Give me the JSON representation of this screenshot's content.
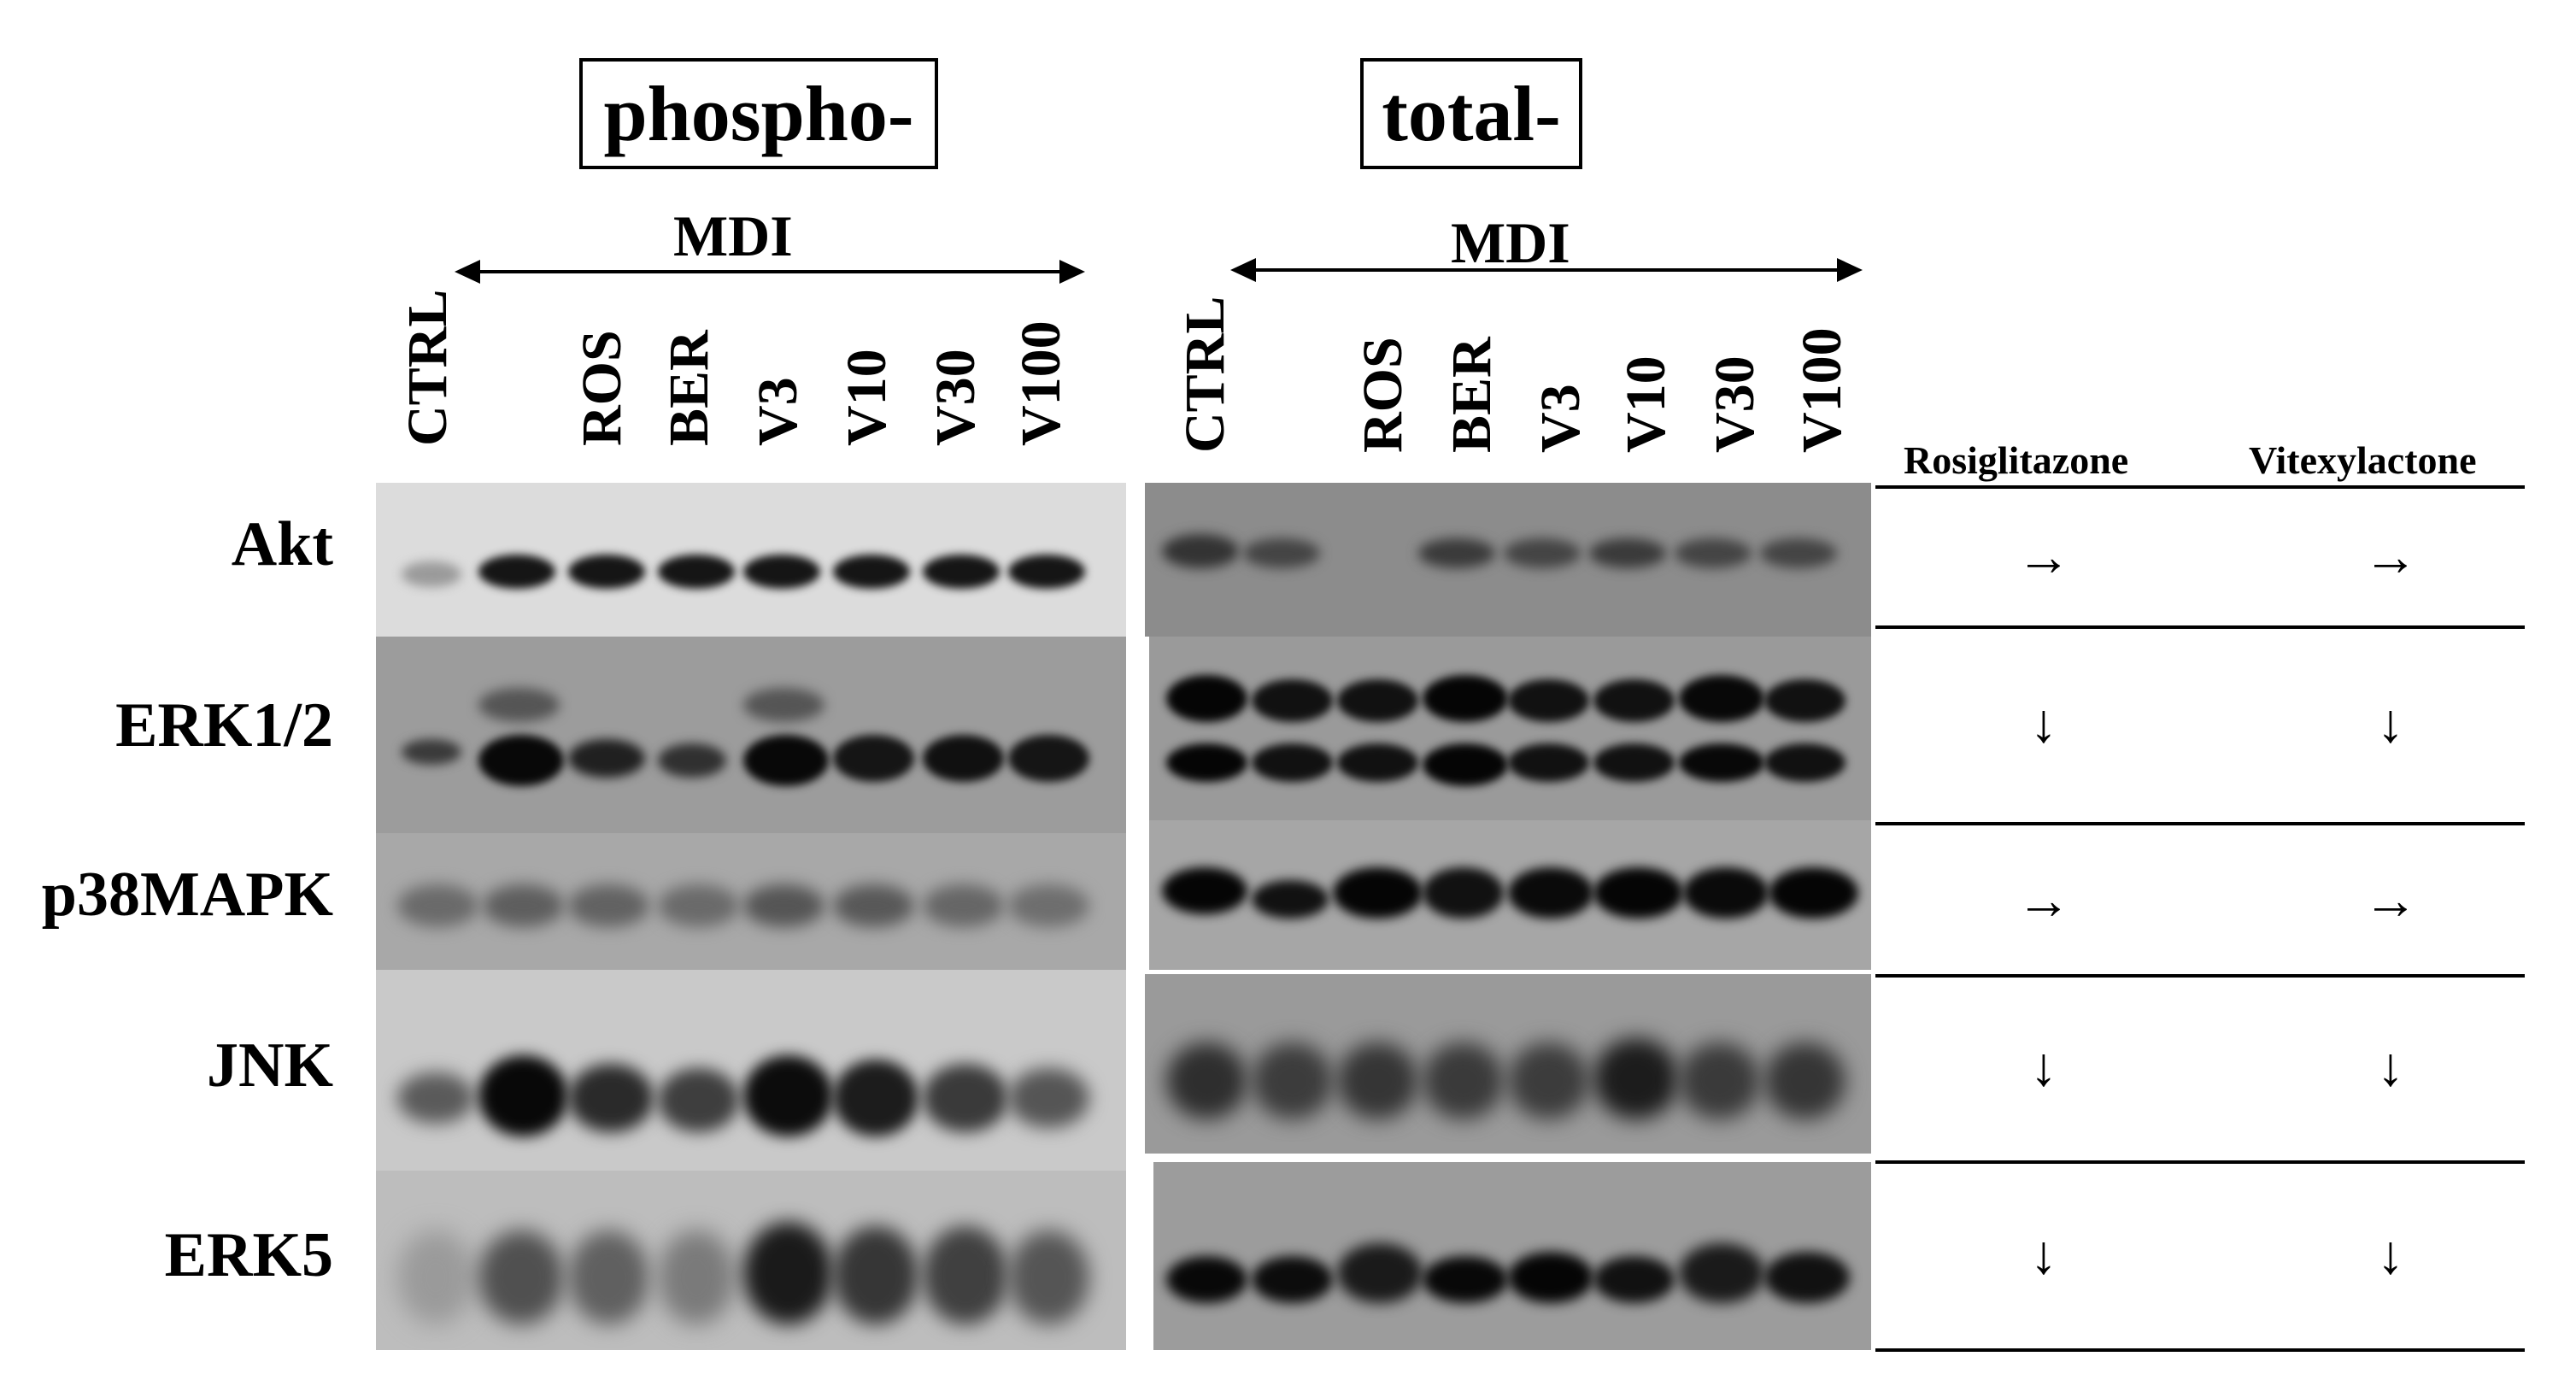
{
  "panels": {
    "phospho_title": "phospho-",
    "total_title": "total-"
  },
  "mdi_label": "MDI",
  "lanes": [
    "CTRL",
    "ROS",
    "BER",
    "V3",
    "V10",
    "V30",
    "V100"
  ],
  "rows": [
    "Akt",
    "ERK1/2",
    "p38MAPK",
    "JNK",
    "ERK5"
  ],
  "table": {
    "headers": [
      "Rosiglitazone",
      "Vitexylactone"
    ],
    "cells": [
      [
        "→",
        "→"
      ],
      [
        "↓",
        "↓"
      ],
      [
        "→",
        "→"
      ],
      [
        "↓",
        "↓"
      ],
      [
        "↓",
        "↓"
      ]
    ]
  }
}
